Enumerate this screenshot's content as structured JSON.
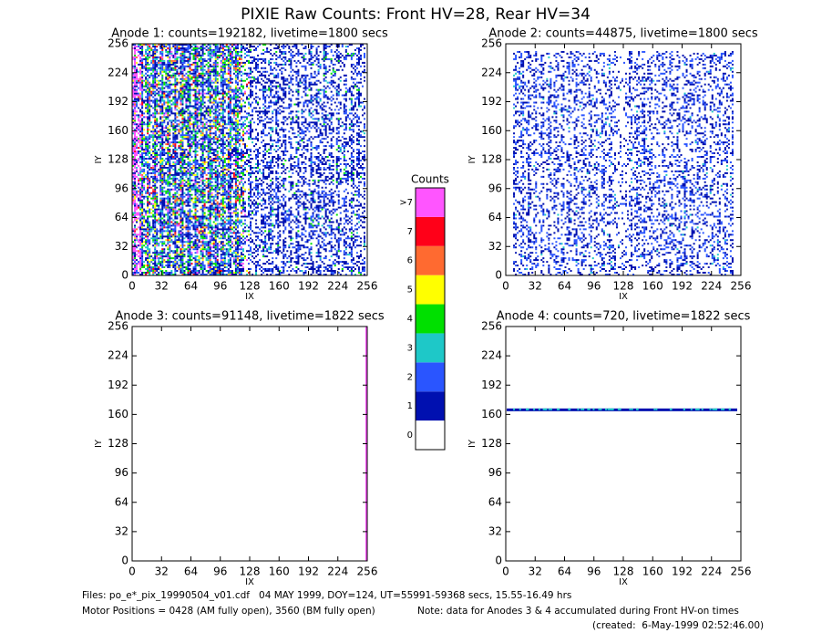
{
  "title": "PIXIE Raw Counts:  Front HV=28, Rear HV=34",
  "panels": [
    {
      "title": "Anode 1: counts=192182, livetime=1800 secs",
      "xlabel": "IX",
      "ylabel": "IY",
      "xlim": [
        0,
        256
      ],
      "ylim": [
        0,
        256
      ],
      "xticks": [
        0,
        32,
        64,
        96,
        128,
        160,
        192,
        224,
        256
      ],
      "yticks": [
        0,
        32,
        64,
        96,
        128,
        160,
        192,
        224,
        256
      ]
    },
    {
      "title": "Anode 2: counts=44875, livetime=1800 secs",
      "xlabel": "IX",
      "ylabel": "IY",
      "xlim": [
        0,
        256
      ],
      "ylim": [
        0,
        256
      ],
      "xticks": [
        0,
        32,
        64,
        96,
        128,
        160,
        192,
        224,
        256
      ],
      "yticks": [
        0,
        32,
        64,
        96,
        128,
        160,
        192,
        224,
        256
      ]
    },
    {
      "title": "Anode 3: counts=91148, livetime=1822 secs",
      "xlabel": "IX",
      "ylabel": "IY",
      "xlim": [
        0,
        256
      ],
      "ylim": [
        0,
        256
      ],
      "xticks": [
        0,
        32,
        64,
        96,
        128,
        160,
        192,
        224,
        256
      ],
      "yticks": [
        0,
        32,
        64,
        96,
        128,
        160,
        192,
        224,
        256
      ]
    },
    {
      "title": "Anode 4: counts=720, livetime=1822 secs",
      "xlabel": "IX",
      "ylabel": "IY",
      "xlim": [
        0,
        256
      ],
      "ylim": [
        0,
        256
      ],
      "xticks": [
        0,
        32,
        64,
        96,
        128,
        160,
        192,
        224,
        256
      ],
      "yticks": [
        0,
        32,
        64,
        96,
        128,
        160,
        192,
        224,
        256
      ]
    }
  ],
  "colorbar": {
    "title": "Counts",
    "labels": [
      "0",
      "1",
      "2",
      "3",
      "4",
      "5",
      "6",
      "7",
      ">7"
    ],
    "colors": [
      "#ffffff",
      "#0010b0",
      "#2a55ff",
      "#1ec8c8",
      "#00e000",
      "#ffff00",
      "#ff6a30",
      "#ff0018",
      "#ff55ff"
    ]
  },
  "footer": {
    "files": "Files: po_e*_pix_19990504_v01.cdf   04 MAY 1999, DOY=124, UT=55991-59368 secs, 15.55-16.49 hrs",
    "motor": "Motor Positions = 0428 (AM fully open), 3560 (BM fully open)",
    "note": "Note: data for Anodes 3 & 4 accumulated during Front HV-on times",
    "created": "(created:  6-May-1999 02:52:46.00)"
  }
}
